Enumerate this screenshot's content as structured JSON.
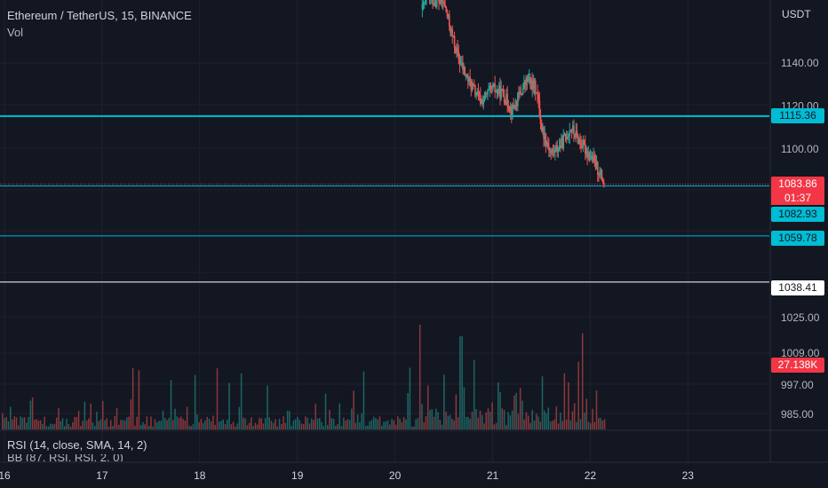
{
  "header": {
    "symbol_title": "Ethereum / TetherUS, 15, BINANCE",
    "volume_label": "Vol",
    "currency": "USDT"
  },
  "indicators": {
    "rsi_label": "RSI (14, close, SMA, 14, 2)",
    "bb_label": "BB (87, RSI, RSI, 2, 0)"
  },
  "price_tags": {
    "resistance": "1115.36",
    "last_price": "1083.86",
    "countdown": "01:37",
    "support_1": "1082.93",
    "support_2": "1059.78",
    "support_3": "1038.41",
    "volume": "27.138K"
  },
  "colors": {
    "background": "#131722",
    "up": "#26a69a",
    "down": "#ef5350",
    "cyan_line": "#00bcd4",
    "white_line": "#ffffff",
    "grid": "#1e222d"
  },
  "chart_data": {
    "type": "candlestick",
    "title": "Ethereum / TetherUS, 15, BINANCE",
    "x_ticks": [
      "16",
      "17",
      "18",
      "19",
      "20",
      "21",
      "22",
      "23"
    ],
    "y_ticks_upper": [
      "1140.00",
      "1120.00",
      "1100.00"
    ],
    "y_ticks_lower": [
      "1025.00",
      "1009.00",
      "997.00",
      "985.00"
    ],
    "horizontal_lines": [
      {
        "price": 1115.36,
        "color": "#00bcd4"
      },
      {
        "price": 1083.86,
        "color": "#f23645",
        "style": "dotted"
      },
      {
        "price": 1082.93,
        "color": "#00bcd4"
      },
      {
        "price": 1059.78,
        "color": "#00bcd4"
      },
      {
        "price": 1038.41,
        "color": "#ffffff"
      }
    ],
    "price_path": [
      {
        "day": 20.28,
        "price": 1165
      },
      {
        "day": 20.32,
        "price": 1170
      },
      {
        "day": 20.5,
        "price": 1168
      },
      {
        "day": 20.6,
        "price": 1150
      },
      {
        "day": 20.65,
        "price": 1142
      },
      {
        "day": 20.75,
        "price": 1132
      },
      {
        "day": 20.88,
        "price": 1122
      },
      {
        "day": 21.0,
        "price": 1128
      },
      {
        "day": 21.1,
        "price": 1126
      },
      {
        "day": 21.2,
        "price": 1118
      },
      {
        "day": 21.35,
        "price": 1132
      },
      {
        "day": 21.45,
        "price": 1128
      },
      {
        "day": 21.5,
        "price": 1110
      },
      {
        "day": 21.6,
        "price": 1098
      },
      {
        "day": 21.7,
        "price": 1102
      },
      {
        "day": 21.8,
        "price": 1110
      },
      {
        "day": 21.9,
        "price": 1103
      },
      {
        "day": 22.0,
        "price": 1097
      },
      {
        "day": 22.1,
        "price": 1089
      },
      {
        "day": 22.14,
        "price": 1083.86
      }
    ],
    "volume_last": "27.138K"
  }
}
